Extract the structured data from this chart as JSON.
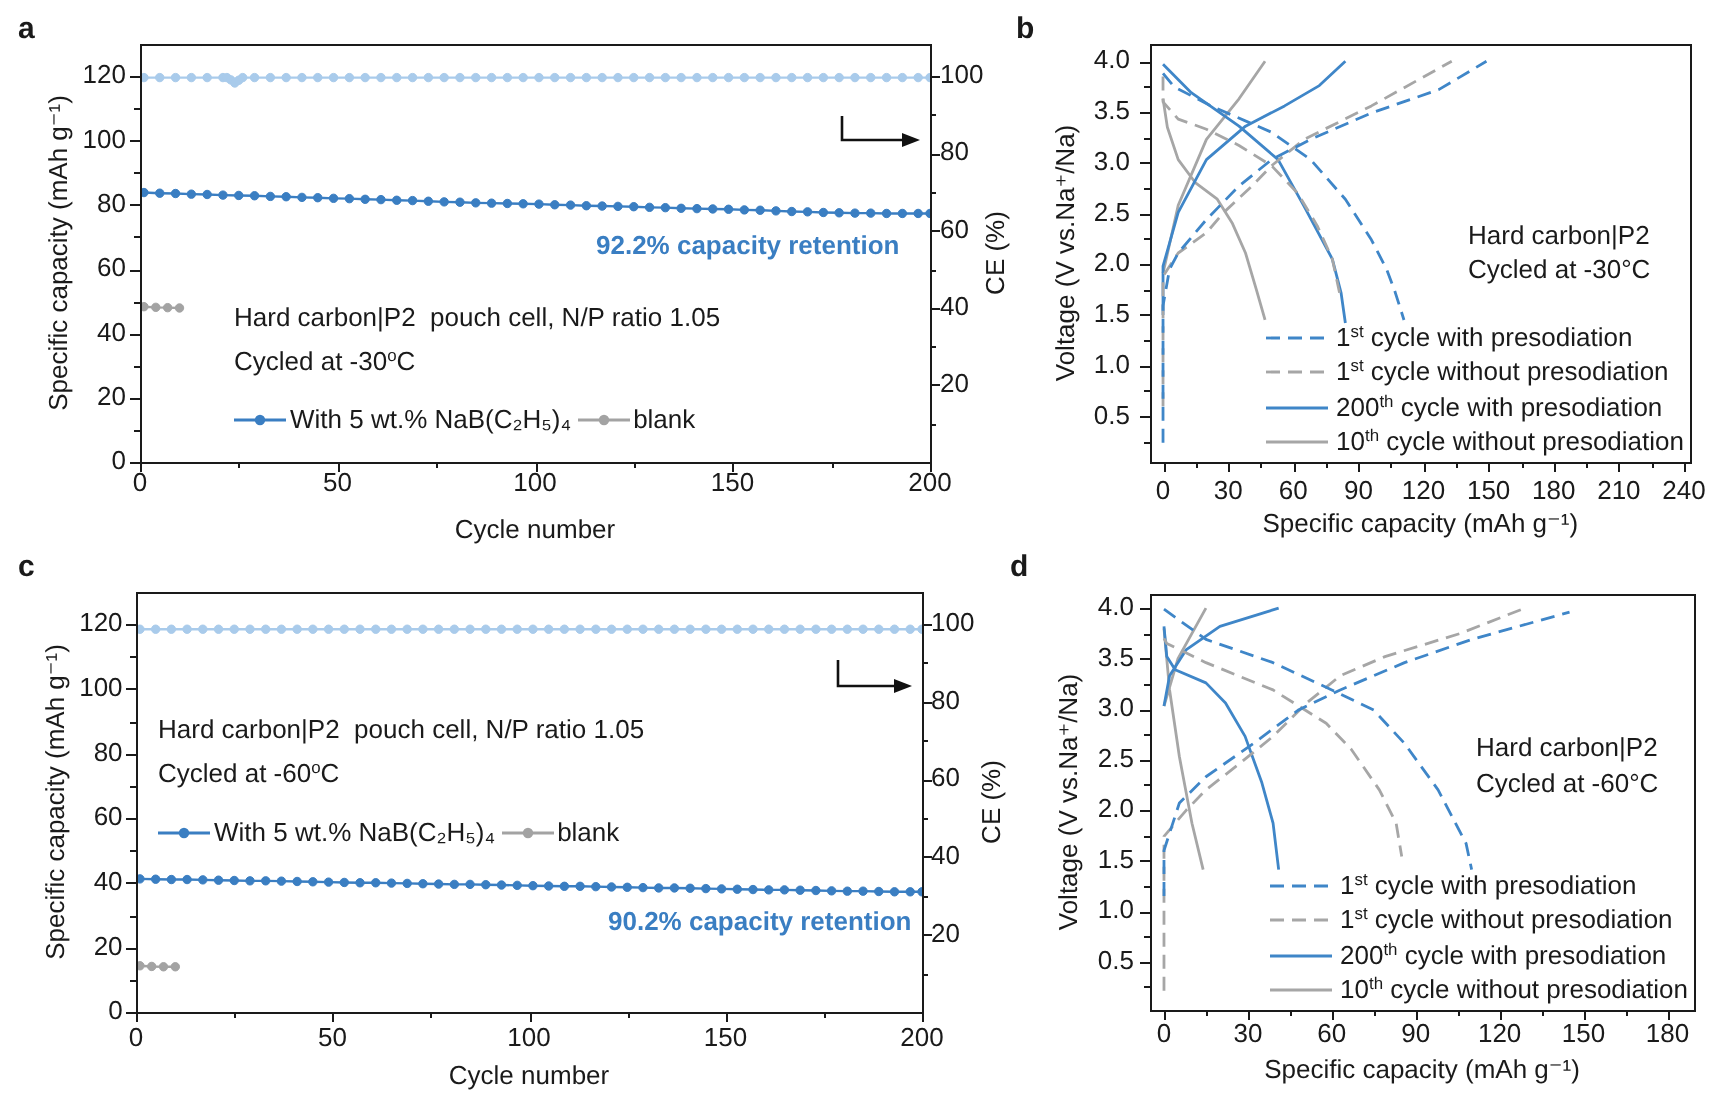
{
  "chart_data": [
    {
      "type": "line",
      "title": "a",
      "xlabel": "Cycle number",
      "ylabel": "Specific capacity (mAh g⁻¹)",
      "y2label": "CE (%)",
      "xlim": [
        0,
        200
      ],
      "xticks": [
        0,
        {
          "value": 25,
          "label": null
        },
        50,
        {
          "value": 75,
          "label": null
        },
        100,
        {
          "value": 125,
          "label": null
        },
        150,
        {
          "value": 175,
          "label": null
        },
        200
      ],
      "ylim": [
        0,
        130
      ],
      "yticks": [
        0,
        {
          "value": 10,
          "label": null
        },
        20,
        {
          "value": 30,
          "label": null
        },
        40,
        {
          "value": 50,
          "label": null
        },
        60,
        {
          "value": 70,
          "label": null
        },
        80,
        {
          "value": 90,
          "label": null
        },
        100,
        {
          "value": 110,
          "label": null
        },
        120
      ],
      "y2lim": [
        0,
        108.3
      ],
      "y2ticks": [
        {
          "value": 10,
          "label": null
        },
        20,
        {
          "value": 30,
          "label": null
        },
        40,
        {
          "value": 50,
          "label": null
        },
        60,
        {
          "value": 70,
          "label": null
        },
        80,
        {
          "value": 90,
          "label": null
        },
        100
      ],
      "marker": "circle",
      "line_style": "solid",
      "legend": "bottom left",
      "annotations": [
        "Hard carbon|P2  pouch cell, N/P ratio 1.05",
        "Cycled at -30$^{o}$C",
        "92.2% capacity retention"
      ],
      "x": [
        1,
        5,
        9,
        13,
        17,
        21,
        25,
        29,
        33,
        37,
        41,
        45,
        49,
        53,
        57,
        61,
        65,
        69,
        73,
        77,
        81,
        85,
        89,
        93,
        97,
        101,
        105,
        109,
        113,
        117,
        121,
        125,
        129,
        133,
        137,
        141,
        145,
        149,
        153,
        157,
        161,
        165,
        169,
        173,
        177,
        181,
        185,
        189,
        193,
        197,
        200
      ],
      "series": [
        {
          "name": "With 5 wt.% NaB(C₂H₅)₄",
          "color": "#3a7ec2",
          "values": [
            83.8,
            83.6,
            83.5,
            83.3,
            83.2,
            83.0,
            82.9,
            82.8,
            82.6,
            82.5,
            82.3,
            82.2,
            82.0,
            81.9,
            81.7,
            81.6,
            81.4,
            81.3,
            81.1,
            80.9,
            80.8,
            80.6,
            80.5,
            80.4,
            80.3,
            80.2,
            80.0,
            79.9,
            79.7,
            79.6,
            79.5,
            79.4,
            79.2,
            79.1,
            78.9,
            78.8,
            78.7,
            78.6,
            78.4,
            78.3,
            78.1,
            77.9,
            77.8,
            77.6,
            77.5,
            77.4,
            77.4,
            77.3,
            77.3,
            77.3,
            77.3
          ]
        },
        {
          "color": "#a9cbeb",
          "axis": "y2",
          "x": [
            1,
            5,
            9,
            13,
            17,
            21,
            22,
            23,
            24,
            25,
            26,
            29,
            33,
            37,
            41,
            45,
            49,
            53,
            57,
            61,
            65,
            69,
            73,
            77,
            81,
            85,
            89,
            93,
            97,
            101,
            105,
            109,
            113,
            117,
            121,
            125,
            129,
            133,
            137,
            141,
            145,
            149,
            153,
            157,
            161,
            165,
            169,
            173,
            177,
            181,
            185,
            189,
            193,
            197,
            200
          ],
          "values": [
            99.6,
            99.6,
            99.6,
            99.6,
            99.6,
            99.6,
            99.6,
            99.0,
            98.2,
            98.9,
            99.6,
            99.6,
            99.6,
            99.6,
            99.6,
            99.6,
            99.6,
            99.6,
            99.6,
            99.6,
            99.6,
            99.6,
            99.6,
            99.6,
            99.6,
            99.6,
            99.6,
            99.6,
            99.6,
            99.6,
            99.6,
            99.6,
            99.6,
            99.6,
            99.6,
            99.6,
            99.6,
            99.6,
            99.6,
            99.6,
            99.6,
            99.6,
            99.6,
            99.6,
            99.6,
            99.6,
            99.6,
            99.6,
            99.6,
            99.6,
            99.6,
            99.6,
            99.6,
            99.6,
            99.6
          ]
        },
        {
          "name": "blank",
          "color": "#a3a3a3",
          "x": [
            1,
            4,
            7,
            10
          ],
          "values": [
            48.3,
            48.1,
            48.0,
            47.9
          ]
        }
      ]
    },
    {
      "type": "line",
      "title": "b",
      "xlabel": "Specific capacity (mAh g⁻¹)",
      "ylabel": "Voltage (V vs.Na⁺/Na)",
      "xlim": [
        -6,
        243
      ],
      "xticks": [
        0,
        {
          "value": 15,
          "label": null
        },
        30,
        {
          "value": 45,
          "label": null
        },
        60,
        {
          "value": 75,
          "label": null
        },
        90,
        {
          "value": 105,
          "label": null
        },
        120,
        {
          "value": 135,
          "label": null
        },
        150,
        {
          "value": 165,
          "label": null
        },
        180,
        {
          "value": 195,
          "label": null
        },
        210,
        {
          "value": 225,
          "label": null
        },
        240
      ],
      "ylim": [
        0.05,
        4.17
      ],
      "yticks": [
        {
          "value": 0.25,
          "label": null
        },
        0.5,
        {
          "value": 0.75,
          "label": null
        },
        {
          "value": 1,
          "label": "1.0"
        },
        {
          "value": 1.25,
          "label": null
        },
        1.5,
        {
          "value": 1.75,
          "label": null
        },
        {
          "value": 2,
          "label": "2.0"
        },
        {
          "value": 2.25,
          "label": null
        },
        2.5,
        {
          "value": 2.75,
          "label": null
        },
        {
          "value": 3,
          "label": "3.0"
        },
        {
          "value": 3.25,
          "label": null
        },
        3.5,
        {
          "value": 3.75,
          "label": null
        },
        {
          "value": 4,
          "label": "4.0"
        }
      ],
      "legend": "bottom right",
      "annotations": [
        "Hard carbon|P2",
        "Cycled at -30°C"
      ],
      "series": [
        {
          "name": "1$^{st}$ cycle with presodiation",
          "color": "#3f86c8",
          "line_style": "dashed",
          "x": [
            0,
            0,
            0,
            3,
            7,
            20,
            35,
            50,
            68,
            96,
            127,
            149,
            null,
            0,
            5,
            22,
            50,
            68,
            84,
            96,
            103,
            107,
            111
          ],
          "values": [
            0.24,
            1.0,
            1.59,
            1.95,
            2.11,
            2.44,
            2.77,
            3.03,
            3.23,
            3.49,
            3.72,
            4.0,
            null,
            3.88,
            3.75,
            3.56,
            3.3,
            3.03,
            2.64,
            2.24,
            1.95,
            1.72,
            1.45
          ]
        },
        {
          "name": "1$^{st}$ cycle without presodiation",
          "color": "#a6a6a6",
          "line_style": "dashed",
          "x": [
            0,
            0,
            0,
            7,
            20,
            28,
            41,
            50,
            65,
            96,
            133,
            null,
            0,
            0,
            7,
            20,
            35,
            50,
            62,
            71,
            78,
            82
          ],
          "values": [
            0.6,
            1.5,
            1.88,
            2.11,
            2.31,
            2.51,
            2.77,
            2.97,
            3.23,
            3.56,
            4.0,
            null,
            3.85,
            3.6,
            3.43,
            3.33,
            3.17,
            2.97,
            2.7,
            2.38,
            2.05,
            1.65
          ]
        },
        {
          "name": "200$^{th}$ cycle with presodiation",
          "color": "#3f86c8",
          "line_style": "solid",
          "x": [
            0,
            0,
            7,
            20,
            38,
            56,
            72,
            84,
            null,
            0,
            13,
            35,
            53,
            65,
            78,
            82,
            84
          ],
          "values": [
            1.5,
            1.98,
            2.51,
            3.03,
            3.36,
            3.56,
            3.76,
            4.0,
            null,
            3.97,
            3.69,
            3.36,
            3.03,
            2.57,
            2.05,
            1.72,
            1.42
          ]
        },
        {
          "name": "10$^{th}$ cycle without presodiation",
          "color": "#a6a6a6",
          "line_style": "solid",
          "x": [
            0,
            7,
            20,
            35,
            47,
            null,
            0,
            2,
            7,
            15,
            25,
            32,
            38,
            43,
            47
          ],
          "values": [
            1.91,
            2.58,
            3.23,
            3.63,
            4.0,
            null,
            3.63,
            3.35,
            3.03,
            2.8,
            2.64,
            2.4,
            2.11,
            1.75,
            1.45
          ]
        }
      ]
    },
    {
      "type": "line",
      "title": "c",
      "xlabel": "Cycle number",
      "ylabel": "Specific capacity (mAh g⁻¹)",
      "y2label": "CE (%)",
      "xlim": [
        0,
        200
      ],
      "xticks": [
        0,
        {
          "value": 25,
          "label": null
        },
        50,
        {
          "value": 75,
          "label": null
        },
        100,
        {
          "value": 125,
          "label": null
        },
        150,
        {
          "value": 175,
          "label": null
        },
        200
      ],
      "ylim": [
        0,
        130
      ],
      "yticks": [
        0,
        {
          "value": 10,
          "label": null
        },
        20,
        {
          "value": 30,
          "label": null
        },
        40,
        {
          "value": 50,
          "label": null
        },
        60,
        {
          "value": 70,
          "label": null
        },
        80,
        {
          "value": 90,
          "label": null
        },
        100,
        {
          "value": 110,
          "label": null
        },
        120
      ],
      "y2lim": [
        0,
        108.3
      ],
      "y2ticks": [
        {
          "value": 10,
          "label": null
        },
        20,
        {
          "value": 30,
          "label": null
        },
        40,
        {
          "value": 50,
          "label": null
        },
        60,
        {
          "value": 70,
          "label": null
        },
        80,
        {
          "value": 90,
          "label": null
        },
        100
      ],
      "marker": "circle",
      "line_style": "solid",
      "legend": "left",
      "annotations": [
        "Hard carbon|P2  pouch cell, N/P ratio 1.05",
        "Cycled at -60$^{o}$C",
        "90.2% capacity retention"
      ],
      "x": [
        1,
        5,
        9,
        13,
        17,
        21,
        25,
        29,
        33,
        37,
        41,
        45,
        49,
        53,
        57,
        61,
        65,
        69,
        73,
        77,
        81,
        85,
        89,
        93,
        97,
        101,
        105,
        109,
        113,
        117,
        121,
        125,
        129,
        133,
        137,
        141,
        145,
        149,
        153,
        157,
        161,
        165,
        169,
        173,
        177,
        181,
        185,
        189,
        193,
        197,
        200
      ],
      "series": [
        {
          "name": "With 5 wt.% NaB(C₂H₅)₄",
          "color": "#3a7ec2",
          "values": [
            41.2,
            41.1,
            41.0,
            41.0,
            40.9,
            40.8,
            40.7,
            40.6,
            40.6,
            40.5,
            40.4,
            40.3,
            40.2,
            40.1,
            40.0,
            40.0,
            39.9,
            39.8,
            39.7,
            39.6,
            39.5,
            39.5,
            39.4,
            39.3,
            39.2,
            39.1,
            39.0,
            38.9,
            38.9,
            38.8,
            38.7,
            38.6,
            38.5,
            38.4,
            38.4,
            38.3,
            38.2,
            38.1,
            38.0,
            37.9,
            37.8,
            37.8,
            37.7,
            37.6,
            37.5,
            37.4,
            37.4,
            37.3,
            37.2,
            37.2,
            37.2
          ]
        },
        {
          "color": "#a9cbeb",
          "axis": "y2",
          "values": [
            98.7,
            98.7,
            98.7,
            98.7,
            98.7,
            98.7,
            98.7,
            98.7,
            98.7,
            98.7,
            98.7,
            98.7,
            98.7,
            98.7,
            98.7,
            98.7,
            98.7,
            98.7,
            98.7,
            98.7,
            98.7,
            98.7,
            98.7,
            98.7,
            98.7,
            98.7,
            98.7,
            98.7,
            98.7,
            98.7,
            98.7,
            98.7,
            98.7,
            98.7,
            98.7,
            98.7,
            98.7,
            98.7,
            98.7,
            98.7,
            98.7,
            98.7,
            98.7,
            98.7,
            98.7,
            98.7,
            98.7,
            98.7,
            98.7,
            98.7,
            98.7
          ]
        },
        {
          "name": "blank",
          "color": "#a3a3a3",
          "x": [
            1,
            4,
            7,
            10
          ],
          "values": [
            14.3,
            14.1,
            14.0,
            14.0
          ]
        }
      ]
    },
    {
      "type": "line",
      "title": "d",
      "xlabel": "Specific capacity (mAh g⁻¹)",
      "ylabel": "Voltage (V vs.Na⁺/Na)",
      "xlim": [
        -5,
        189.5
      ],
      "xticks": [
        0,
        {
          "value": 15,
          "label": null
        },
        30,
        {
          "value": 45,
          "label": null
        },
        60,
        {
          "value": 75,
          "label": null
        },
        90,
        {
          "value": 105,
          "label": null
        },
        120,
        {
          "value": 135,
          "label": null
        },
        150,
        {
          "value": 165,
          "label": null
        },
        180
      ],
      "ylim": [
        0.02,
        4.14
      ],
      "yticks": [
        {
          "value": 0.25,
          "label": null
        },
        0.5,
        {
          "value": 0.75,
          "label": null
        },
        {
          "value": 1,
          "label": "1.0"
        },
        {
          "value": 1.25,
          "label": null
        },
        1.5,
        {
          "value": 1.75,
          "label": null
        },
        {
          "value": 2,
          "label": "2.0"
        },
        {
          "value": 2.25,
          "label": null
        },
        2.5,
        {
          "value": 2.75,
          "label": null
        },
        {
          "value": 3,
          "label": "3.0"
        },
        {
          "value": 3.25,
          "label": null
        },
        3.5,
        {
          "value": 3.75,
          "label": null
        },
        {
          "value": 4,
          "label": "4.0"
        }
      ],
      "legend": "bottom right",
      "annotations": [
        "Hard carbon|P2",
        "Cycled at -60°C"
      ],
      "series": [
        {
          "name": "1$^{st}$ cycle with presodiation",
          "color": "#3f86c8",
          "line_style": "dashed",
          "x": [
            0,
            0,
            5.5,
            15,
            32,
            48,
            63,
            86,
            110,
            145,
            null,
            0,
            15,
            39,
            60,
            75,
            86,
            98,
            108,
            110
          ],
          "values": [
            1.15,
            1.6,
            2.07,
            2.33,
            2.66,
            2.99,
            3.19,
            3.46,
            3.69,
            3.96,
            null,
            3.99,
            3.69,
            3.46,
            3.19,
            2.99,
            2.66,
            2.2,
            1.67,
            1.41
          ]
        },
        {
          "name": "1$^{st}$ cycle without presodiation",
          "color": "#a6a6a6",
          "line_style": "dashed",
          "x": [
            0,
            0,
            8,
            15,
            27,
            39,
            51,
            63,
            79,
            106,
            129,
            null,
            0,
            1,
            15,
            39,
            58,
            67,
            77,
            83,
            85
          ],
          "values": [
            0.21,
            1.74,
            2.0,
            2.2,
            2.46,
            2.73,
            3.06,
            3.33,
            3.52,
            3.75,
            4.0,
            null,
            3.7,
            3.65,
            3.46,
            3.19,
            2.86,
            2.6,
            2.2,
            1.87,
            1.54
          ]
        },
        {
          "name": "200$^{th}$ cycle with presodiation",
          "color": "#3f86c8",
          "line_style": "solid",
          "x": [
            0,
            2,
            8,
            20,
            41,
            null,
            0,
            1,
            4,
            15,
            22,
            29,
            35,
            39,
            41
          ],
          "values": [
            3.03,
            3.33,
            3.59,
            3.82,
            4.0,
            null,
            3.82,
            3.52,
            3.39,
            3.26,
            3.06,
            2.73,
            2.27,
            1.87,
            1.41
          ]
        },
        {
          "name": "10$^{th}$ cycle without presodiation",
          "color": "#a6a6a6",
          "line_style": "solid",
          "x": [
            0,
            5,
            15,
            null,
            0,
            2,
            5.5,
            10,
            14
          ],
          "values": [
            3.03,
            3.5,
            4.0,
            null,
            3.8,
            3.19,
            2.53,
            1.87,
            1.41
          ]
        }
      ]
    }
  ]
}
